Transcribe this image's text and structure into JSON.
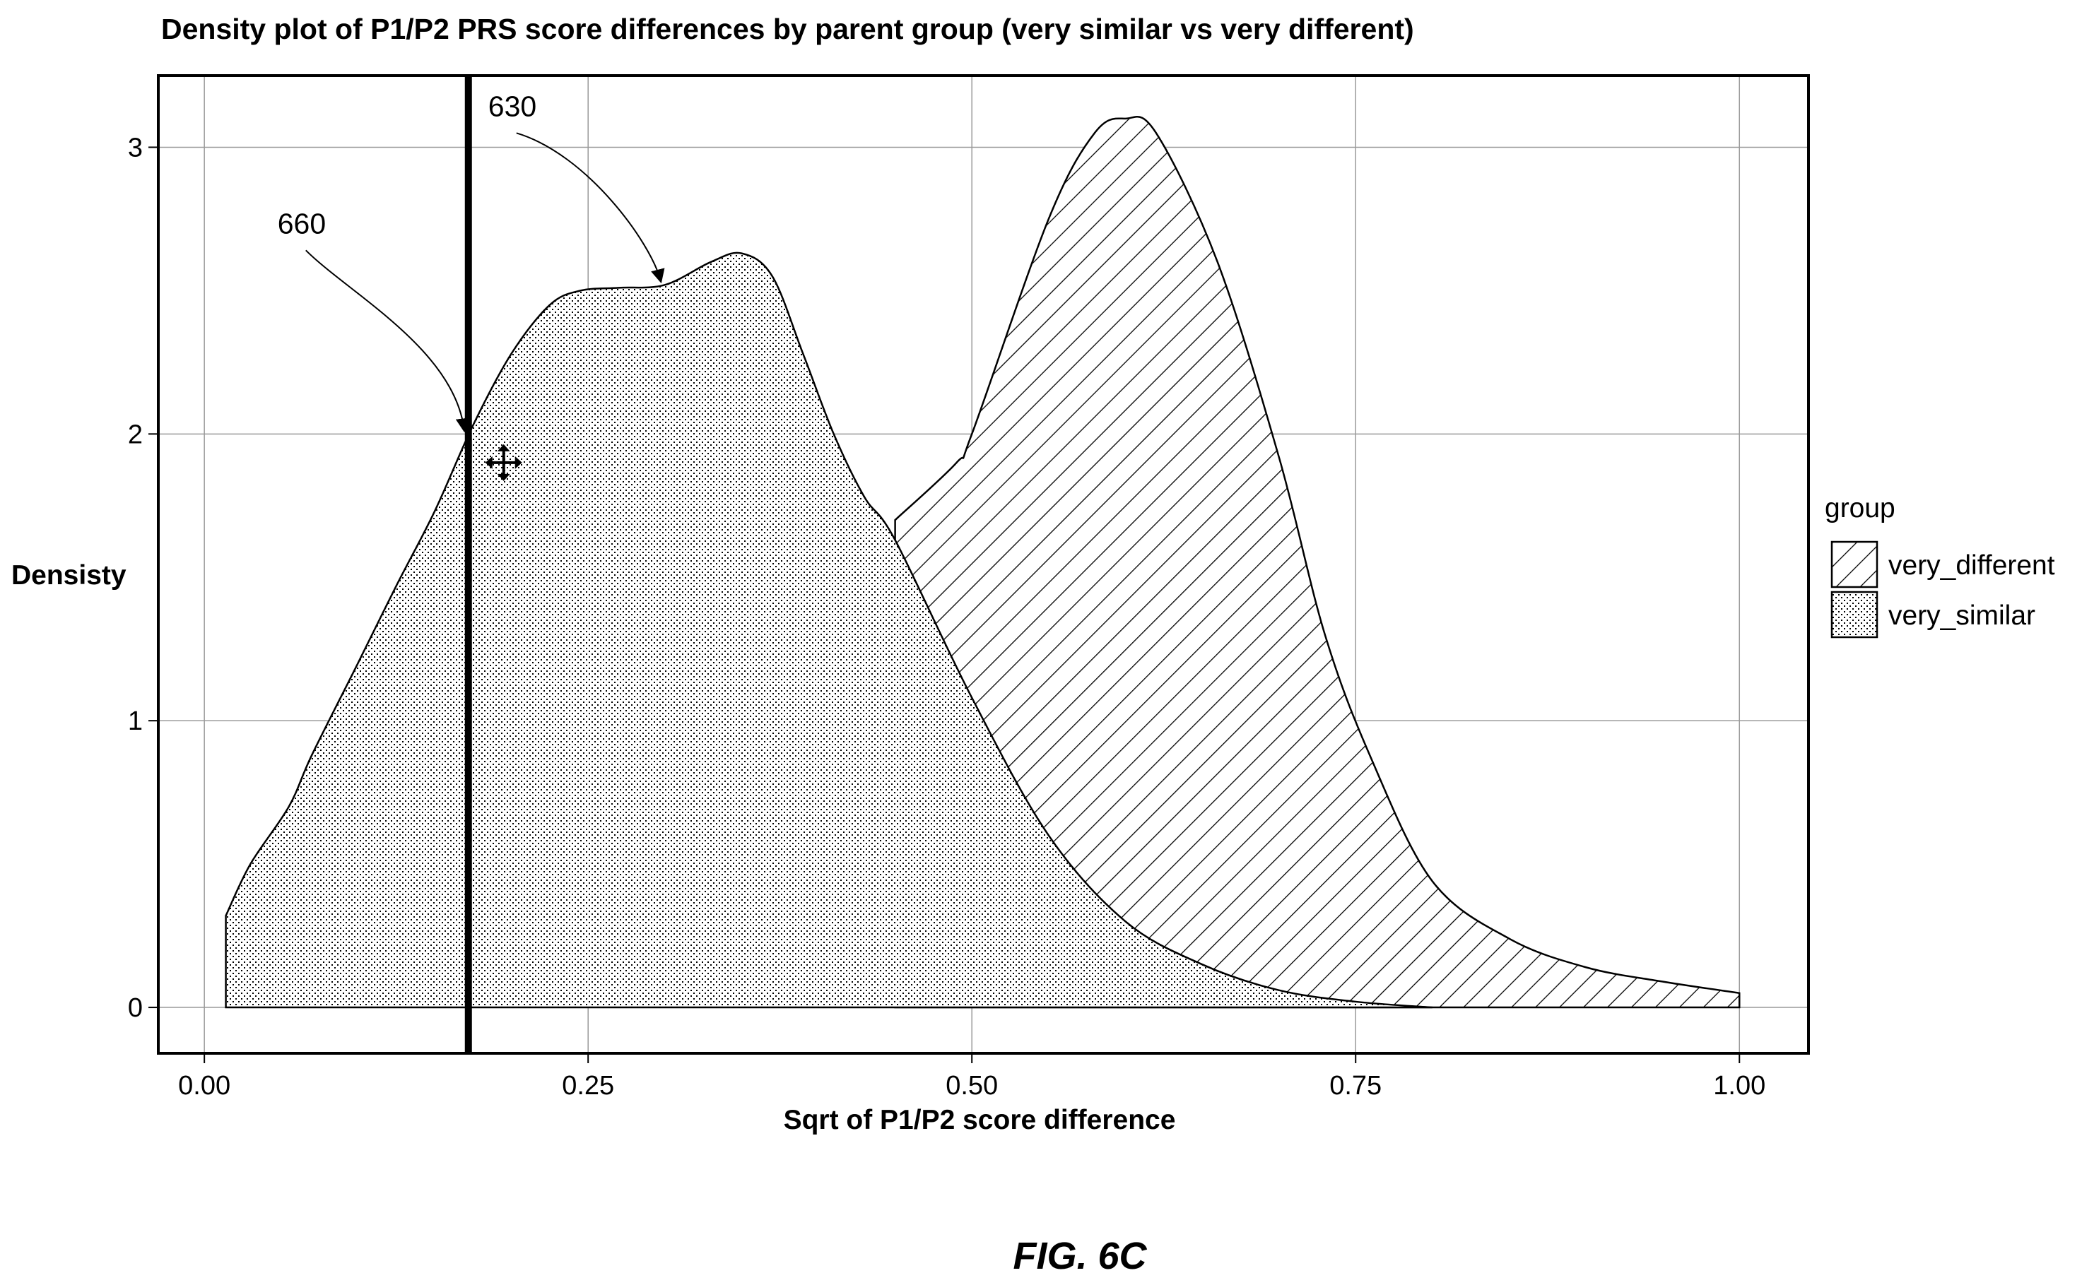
{
  "figure_caption": "FIG. 6C",
  "colors": {
    "ink": "#000000",
    "grid": "#9a9a9a",
    "background": "#ffffff"
  },
  "chart_data": {
    "type": "area",
    "subtype": "density",
    "title": "Density plot of P1/P2 PRS score differences by parent group (very similar vs very different)",
    "xlabel": "Sqrt of P1/P2 score difference",
    "ylabel": "Densisty",
    "xlim": [
      -0.03,
      1.045
    ],
    "ylim": [
      -0.16,
      3.25
    ],
    "x_ticks": [
      0.0,
      0.25,
      0.5,
      0.75,
      1.0
    ],
    "x_tick_labels": [
      "0.00",
      "0.25",
      "0.50",
      "0.75",
      "1.00"
    ],
    "y_ticks": [
      0,
      1,
      2,
      3
    ],
    "y_tick_labels": [
      "0",
      "1",
      "2",
      "3"
    ],
    "grid": true,
    "legend": {
      "title": "group",
      "position": "right",
      "entries": [
        {
          "label": "very_different",
          "pattern": "diagonal-hatch"
        },
        {
          "label": "very_similar",
          "pattern": "stipple"
        }
      ]
    },
    "series": [
      {
        "name": "very_similar",
        "pattern": "stipple",
        "x": [
          0.014,
          0.03,
          0.055,
          0.07,
          0.1,
          0.125,
          0.15,
          0.175,
          0.2,
          0.225,
          0.245,
          0.27,
          0.3,
          0.33,
          0.35,
          0.37,
          0.39,
          0.41,
          0.43,
          0.45,
          0.5,
          0.55,
          0.6,
          0.65,
          0.7,
          0.75,
          0.8
        ],
        "y": [
          0.32,
          0.5,
          0.7,
          0.88,
          1.2,
          1.47,
          1.73,
          2.03,
          2.28,
          2.45,
          2.5,
          2.51,
          2.52,
          2.6,
          2.63,
          2.55,
          2.28,
          2.0,
          1.78,
          1.63,
          1.08,
          0.6,
          0.3,
          0.15,
          0.06,
          0.02,
          0.0
        ]
      },
      {
        "name": "very_different",
        "pattern": "diagonal-hatch",
        "x": [
          0.45,
          0.49,
          0.5,
          0.55,
          0.58,
          0.6,
          0.62,
          0.66,
          0.7,
          0.73,
          0.76,
          0.8,
          0.85,
          0.9,
          0.95,
          1.0
        ],
        "y": [
          1.7,
          1.9,
          2.0,
          2.75,
          3.05,
          3.1,
          3.05,
          2.6,
          1.92,
          1.3,
          0.87,
          0.44,
          0.24,
          0.14,
          0.09,
          0.05
        ]
      }
    ],
    "vertical_line": {
      "x": 0.172
    },
    "annotations": [
      {
        "label": "660",
        "points_to": {
          "x": 0.172,
          "y": 2.0
        }
      },
      {
        "label": "630",
        "points_to": {
          "x": 0.3,
          "y": 2.52
        }
      }
    ],
    "cursor_marker": {
      "type": "move-icon",
      "at": {
        "x": 0.195,
        "y": 1.9
      }
    }
  }
}
